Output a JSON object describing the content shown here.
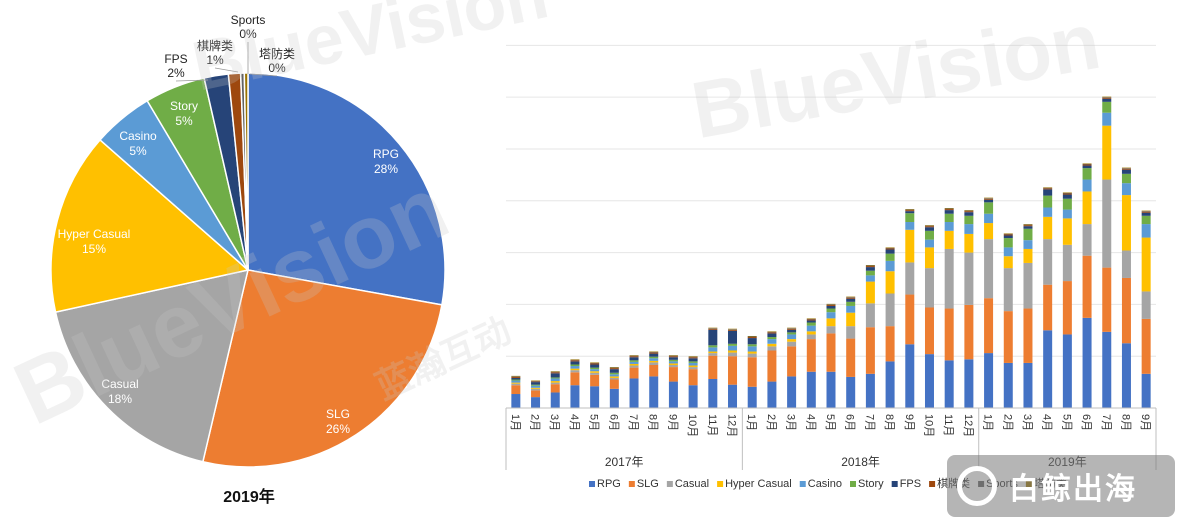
{
  "chart_data": [
    {
      "type": "pie",
      "caption": "2019年",
      "slices": [
        {
          "label": "RPG",
          "pct": "28%",
          "value": 28,
          "color": "#4472C4"
        },
        {
          "label": "SLG",
          "pct": "26%",
          "value": 26,
          "color": "#ED7D31"
        },
        {
          "label": "Casual",
          "pct": "18%",
          "value": 18,
          "color": "#A5A5A5"
        },
        {
          "label": "Hyper Casual",
          "pct": "15%",
          "value": 15,
          "color": "#FFC000"
        },
        {
          "label": "Casino",
          "pct": "5%",
          "value": 5,
          "color": "#5B9BD5"
        },
        {
          "label": "Story",
          "pct": "5%",
          "value": 5,
          "color": "#70AD47"
        },
        {
          "label": "FPS",
          "pct": "2%",
          "value": 2,
          "color": "#264478"
        },
        {
          "label": "棋牌类",
          "pct": "1%",
          "value": 1,
          "color": "#9E480E"
        },
        {
          "label": "Sports",
          "pct": "0%",
          "value": 0.3,
          "color": "#636363"
        },
        {
          "label": "塔防类",
          "pct": "0%",
          "value": 0.3,
          "color": "#997300"
        }
      ]
    },
    {
      "type": "bar",
      "stacked": true,
      "months": [
        "1月",
        "2月",
        "3月",
        "4月",
        "5月",
        "6月",
        "7月",
        "8月",
        "9月",
        "10月",
        "11月",
        "12月",
        "1月",
        "2月",
        "3月",
        "4月",
        "5月",
        "6月",
        "7月",
        "8月",
        "9月",
        "10月",
        "11月",
        "12月",
        "1月",
        "2月",
        "3月",
        "4月",
        "5月",
        "6月",
        "7月",
        "8月",
        "9月"
      ],
      "years": [
        "2017年",
        "2018年",
        "2019年"
      ],
      "year_spans": [
        12,
        12,
        9
      ],
      "grid": true,
      "series": [
        {
          "name": "RPG",
          "color": "#4472C4",
          "values": [
            27,
            21,
            30,
            44,
            42,
            37,
            57,
            61,
            51,
            44,
            56,
            45,
            41,
            51,
            61,
            70,
            70,
            60,
            66,
            90,
            123,
            104,
            92,
            94,
            106,
            87,
            87,
            150,
            142,
            174,
            147,
            125,
            66
          ]
        },
        {
          "name": "SLG",
          "color": "#ED7D31",
          "values": [
            17,
            13,
            16,
            25,
            22,
            18,
            21,
            22,
            28,
            31,
            45,
            55,
            57,
            60,
            58,
            63,
            74,
            74,
            90,
            68,
            96,
            90,
            100,
            105,
            106,
            100,
            105,
            88,
            103,
            120,
            124,
            126,
            106
          ]
        },
        {
          "name": "Casual",
          "color": "#A5A5A5",
          "values": [
            3,
            3,
            3,
            4,
            4,
            3,
            4,
            5,
            4,
            4,
            5,
            7,
            7,
            8,
            9,
            9,
            14,
            24,
            46,
            63,
            62,
            76,
            115,
            101,
            114,
            83,
            88,
            88,
            70,
            61,
            170,
            53,
            53
          ]
        },
        {
          "name": "Hyper Casual",
          "color": "#FFC000",
          "values": [
            2,
            2,
            3,
            3,
            3,
            3,
            3,
            3,
            3,
            3,
            3,
            4,
            4,
            5,
            5,
            6,
            15,
            26,
            42,
            43,
            63,
            40,
            35,
            36,
            31,
            23,
            27,
            43,
            51,
            63,
            104,
            107,
            104
          ]
        },
        {
          "name": "Casino",
          "color": "#5B9BD5",
          "values": [
            4,
            4,
            5,
            5,
            4,
            4,
            4,
            5,
            4,
            5,
            8,
            9,
            10,
            9,
            9,
            11,
            12,
            13,
            12,
            20,
            15,
            15,
            17,
            19,
            18,
            17,
            17,
            18,
            17,
            23,
            25,
            23,
            26
          ]
        },
        {
          "name": "Story",
          "color": "#70AD47",
          "values": [
            2,
            2,
            2,
            3,
            3,
            3,
            3,
            3,
            3,
            3,
            4,
            4,
            4,
            4,
            4,
            6,
            7,
            8,
            9,
            14,
            17,
            17,
            16,
            16,
            22,
            18,
            22,
            23,
            21,
            22,
            21,
            18,
            16
          ]
        },
        {
          "name": "FPS",
          "color": "#264478",
          "values": [
            3,
            5,
            8,
            6,
            6,
            7,
            6,
            6,
            5,
            6,
            30,
            25,
            12,
            7,
            5,
            4,
            5,
            6,
            7,
            8,
            4,
            7,
            7,
            7,
            5,
            5,
            5,
            12,
            8,
            5,
            6,
            8,
            6
          ]
        },
        {
          "name": "棋牌类",
          "color": "#9E480E",
          "values": [
            2,
            1,
            2,
            2,
            2,
            2,
            2,
            2,
            2,
            2,
            2,
            2,
            2,
            2,
            2,
            2,
            2,
            2,
            2,
            2,
            2,
            2,
            2,
            2,
            2,
            2,
            2,
            2,
            2,
            2,
            2,
            2,
            2
          ]
        },
        {
          "name": "Sports",
          "color": "#636363",
          "values": [
            1,
            1,
            1,
            1,
            1,
            1,
            1,
            1,
            1,
            1,
            1,
            1,
            1,
            1,
            1,
            1,
            1,
            1,
            1,
            1,
            1,
            1,
            1,
            1,
            1,
            1,
            1,
            1,
            1,
            1,
            1,
            1,
            1
          ]
        },
        {
          "name": "塔防类",
          "color": "#997300",
          "values": [
            1,
            1,
            1,
            1,
            1,
            1,
            1,
            1,
            1,
            1,
            1,
            1,
            1,
            1,
            1,
            1,
            1,
            1,
            1,
            1,
            1,
            1,
            1,
            1,
            1,
            1,
            1,
            1,
            1,
            1,
            1,
            1,
            1
          ]
        }
      ],
      "ylim": [
        0,
        720
      ]
    }
  ],
  "watermark": {
    "text": "BlueVision",
    "cn_text": "蓝瀚互动",
    "badge_text": "白鲸出海"
  }
}
